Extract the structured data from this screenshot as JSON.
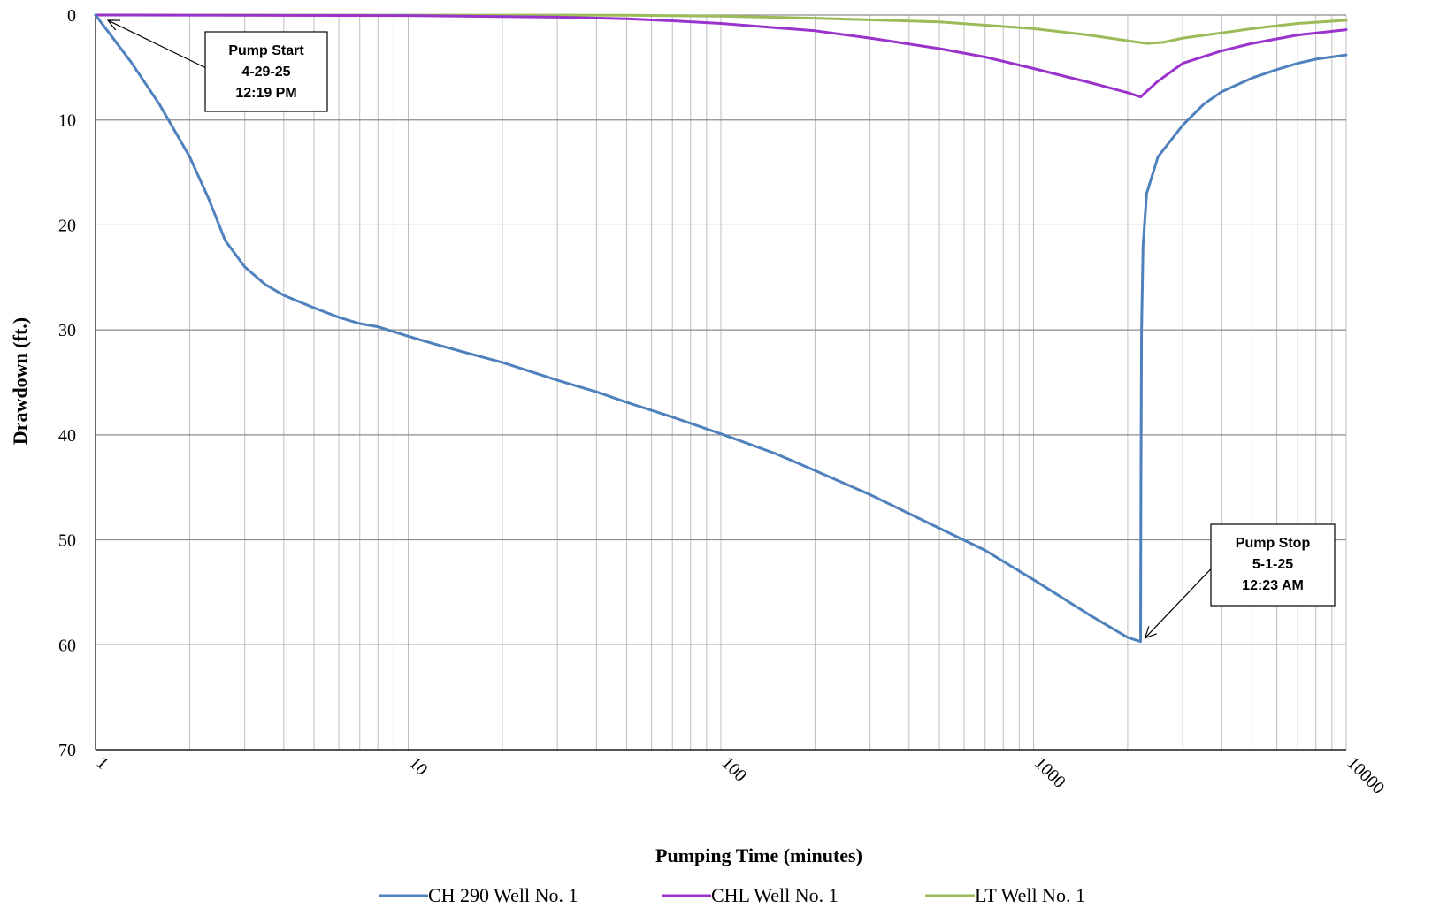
{
  "chart_data": {
    "type": "line",
    "title": "",
    "xlabel": "Pumping Time (minutes)",
    "ylabel": "Drawdown (ft.)",
    "x_scale": "log",
    "xlim": [
      1,
      10000
    ],
    "ylim": [
      0,
      70
    ],
    "y_inverted": true,
    "grid": true,
    "legend_position": "bottom",
    "x_tick_labels": [
      "1",
      "10",
      "100",
      "1000",
      "10000"
    ],
    "y_tick_labels": [
      "0",
      "10",
      "20",
      "30",
      "40",
      "50",
      "60",
      "70"
    ],
    "series": [
      {
        "name": "CH 290 Well No. 1",
        "color": "#4F81BD",
        "points": [
          [
            1,
            0
          ],
          [
            1.3,
            4.5
          ],
          [
            1.6,
            8.5
          ],
          [
            2.0,
            13.5
          ],
          [
            2.3,
            17.5
          ],
          [
            2.6,
            21.5
          ],
          [
            3.0,
            24.0
          ],
          [
            3.5,
            25.7
          ],
          [
            4.0,
            26.7
          ],
          [
            5.0,
            27.9
          ],
          [
            6.0,
            28.8
          ],
          [
            7.0,
            29.4
          ],
          [
            8.0,
            29.7
          ],
          [
            10,
            30.6
          ],
          [
            12,
            31.3
          ],
          [
            15,
            32.1
          ],
          [
            20,
            33.1
          ],
          [
            30,
            34.8
          ],
          [
            40,
            35.9
          ],
          [
            50,
            36.9
          ],
          [
            70,
            38.3
          ],
          [
            100,
            39.9
          ],
          [
            150,
            41.8
          ],
          [
            200,
            43.4
          ],
          [
            300,
            45.7
          ],
          [
            500,
            48.9
          ],
          [
            700,
            51.0
          ],
          [
            1000,
            53.8
          ],
          [
            1500,
            57.1
          ],
          [
            2000,
            59.3
          ],
          [
            2200,
            59.7
          ],
          [
            2205,
            45.0
          ],
          [
            2215,
            30.0
          ],
          [
            2240,
            22.0
          ],
          [
            2300,
            17.0
          ],
          [
            2500,
            13.5
          ],
          [
            3000,
            10.5
          ],
          [
            3500,
            8.5
          ],
          [
            4000,
            7.3
          ],
          [
            5000,
            6.0
          ],
          [
            6000,
            5.2
          ],
          [
            7000,
            4.6
          ],
          [
            8000,
            4.2
          ],
          [
            10000,
            3.8
          ]
        ]
      },
      {
        "name": "CHL Well No. 1",
        "color": "#9933CC",
        "points": [
          [
            1,
            0
          ],
          [
            10,
            0.05
          ],
          [
            30,
            0.2
          ],
          [
            50,
            0.35
          ],
          [
            70,
            0.55
          ],
          [
            100,
            0.8
          ],
          [
            200,
            1.5
          ],
          [
            300,
            2.2
          ],
          [
            500,
            3.2
          ],
          [
            700,
            4.0
          ],
          [
            1000,
            5.1
          ],
          [
            1500,
            6.4
          ],
          [
            2000,
            7.4
          ],
          [
            2200,
            7.8
          ],
          [
            2500,
            6.3
          ],
          [
            3000,
            4.6
          ],
          [
            4000,
            3.4
          ],
          [
            5000,
            2.7
          ],
          [
            7000,
            1.9
          ],
          [
            10000,
            1.4
          ]
        ]
      },
      {
        "name": "LT Well No. 1",
        "color": "#9BBB59",
        "points": [
          [
            1,
            0
          ],
          [
            50,
            0.02
          ],
          [
            100,
            0.1
          ],
          [
            200,
            0.3
          ],
          [
            500,
            0.65
          ],
          [
            1000,
            1.3
          ],
          [
            1500,
            1.9
          ],
          [
            2000,
            2.45
          ],
          [
            2300,
            2.7
          ],
          [
            2600,
            2.6
          ],
          [
            3000,
            2.2
          ],
          [
            4000,
            1.7
          ],
          [
            5000,
            1.3
          ],
          [
            7000,
            0.8
          ],
          [
            10000,
            0.5
          ]
        ]
      }
    ],
    "annotations": [
      {
        "lines": [
          "Pump Start",
          "4-29-25",
          "12:19 PM"
        ],
        "target_x": 1,
        "target_y": 0
      },
      {
        "lines": [
          "Pump Stop",
          "5-1-25",
          "12:23 AM"
        ],
        "target_x": 2200,
        "target_y": 59.7
      }
    ]
  }
}
